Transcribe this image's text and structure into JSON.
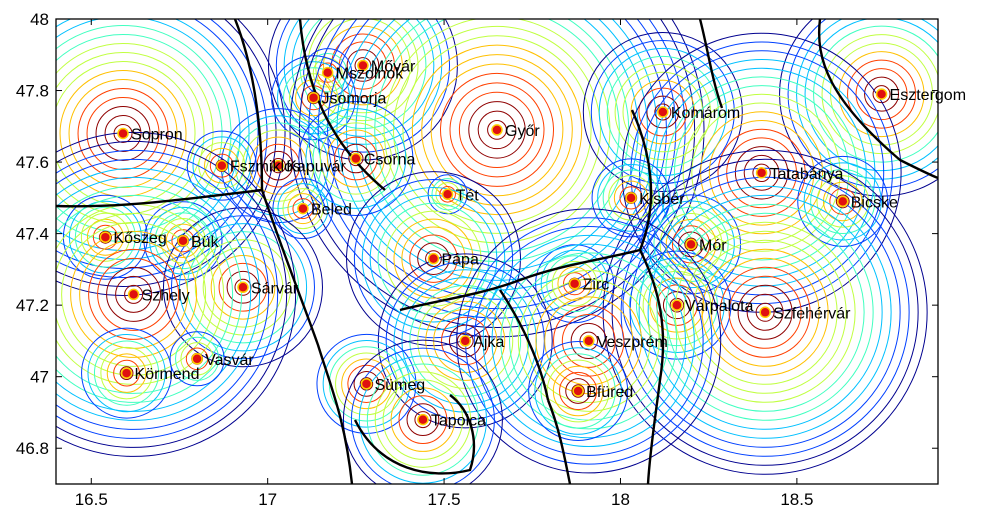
{
  "chart_data": {
    "type": "scatter",
    "title": "",
    "xlabel": "",
    "ylabel": "",
    "xlim": [
      16.4,
      18.9
    ],
    "ylim": [
      46.7,
      48.0
    ],
    "xticks": [
      "16.5",
      "17",
      "17.5",
      "18",
      "18.5"
    ],
    "yticks": [
      "46.8",
      "47",
      "47.2",
      "47.4",
      "47.6",
      "47.8",
      "48"
    ],
    "grid": false,
    "legend": "none",
    "contour_colormap": [
      "#00008f",
      "#0040ff",
      "#00c0ff",
      "#40ffc0",
      "#c0ff40",
      "#ffc000",
      "#ff4000",
      "#8f0000"
    ],
    "cities": [
      {
        "name": "Sopron",
        "x": 16.59,
        "y": 47.68,
        "strength": 1.0
      },
      {
        "name": "Mővár",
        "x": 17.27,
        "y": 47.87,
        "strength": 0.55
      },
      {
        "name": "Mszolnok",
        "x": 17.17,
        "y": 47.85,
        "strength": 0.08
      },
      {
        "name": "Jsomorja",
        "x": 17.13,
        "y": 47.78,
        "strength": 0.2
      },
      {
        "name": "Győr",
        "x": 17.65,
        "y": 47.69,
        "strength": 1.3
      },
      {
        "name": "Komárom",
        "x": 18.12,
        "y": 47.74,
        "strength": 0.45
      },
      {
        "name": "Esztergom",
        "x": 18.74,
        "y": 47.79,
        "strength": 0.6
      },
      {
        "name": "Kapuvár",
        "x": 17.03,
        "y": 47.59,
        "strength": 0.3
      },
      {
        "name": "Fszmiklós",
        "x": 16.87,
        "y": 47.59,
        "strength": 0.15
      },
      {
        "name": "Csorna",
        "x": 17.25,
        "y": 47.61,
        "strength": 0.3
      },
      {
        "name": "Tét",
        "x": 17.51,
        "y": 47.51,
        "strength": 0.05
      },
      {
        "name": "Tatabánya",
        "x": 18.4,
        "y": 47.57,
        "strength": 0.85
      },
      {
        "name": "Kisbér",
        "x": 18.03,
        "y": 47.5,
        "strength": 0.18
      },
      {
        "name": "Bicske",
        "x": 18.63,
        "y": 47.49,
        "strength": 0.22
      },
      {
        "name": "Beled",
        "x": 17.1,
        "y": 47.47,
        "strength": 0.12
      },
      {
        "name": "Kőszeg",
        "x": 16.54,
        "y": 47.39,
        "strength": 0.2
      },
      {
        "name": "Bük",
        "x": 16.76,
        "y": 47.38,
        "strength": 0.18
      },
      {
        "name": "Mór",
        "x": 18.2,
        "y": 47.37,
        "strength": 0.25
      },
      {
        "name": "Pápa",
        "x": 17.47,
        "y": 47.33,
        "strength": 0.5
      },
      {
        "name": "Zirc",
        "x": 17.87,
        "y": 47.26,
        "strength": 0.18
      },
      {
        "name": "Sárvár",
        "x": 16.93,
        "y": 47.25,
        "strength": 0.45
      },
      {
        "name": "Szhely",
        "x": 16.62,
        "y": 47.23,
        "strength": 1.0
      },
      {
        "name": "Várpalota",
        "x": 18.16,
        "y": 47.2,
        "strength": 0.28
      },
      {
        "name": "Szfehérvár",
        "x": 18.41,
        "y": 47.18,
        "strength": 1.0
      },
      {
        "name": "Ajka",
        "x": 17.56,
        "y": 47.1,
        "strength": 0.5
      },
      {
        "name": "Veszprém",
        "x": 17.91,
        "y": 47.1,
        "strength": 0.8
      },
      {
        "name": "Vasvár",
        "x": 16.8,
        "y": 47.05,
        "strength": 0.1
      },
      {
        "name": "Körmend",
        "x": 16.6,
        "y": 47.01,
        "strength": 0.22
      },
      {
        "name": "Sümeg",
        "x": 17.28,
        "y": 46.98,
        "strength": 0.25
      },
      {
        "name": "Bfüred",
        "x": 17.88,
        "y": 46.96,
        "strength": 0.25
      },
      {
        "name": "Tapolca",
        "x": 17.44,
        "y": 46.88,
        "strength": 0.45
      }
    ]
  }
}
